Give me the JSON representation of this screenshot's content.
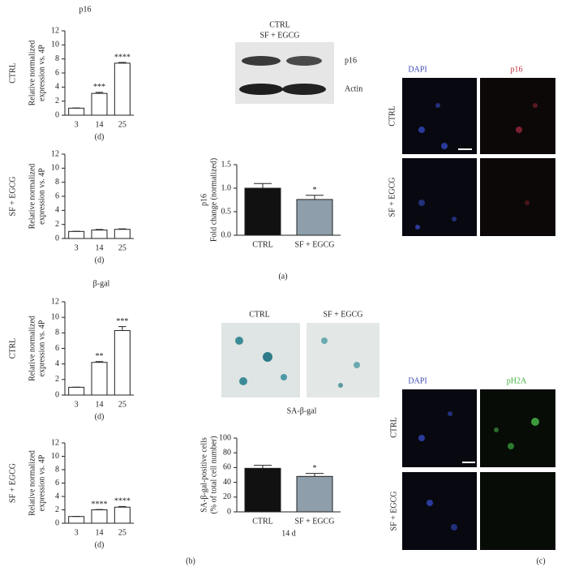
{
  "chart_data": [
    {
      "type": "bar",
      "title": "p16",
      "side_label": "CTRL",
      "ylabel": [
        "Relative normalized",
        "expression vs. 4P"
      ],
      "xlabel": "(d)",
      "categories": [
        "3",
        "14",
        "25"
      ],
      "values": [
        1,
        3.1,
        7.4
      ],
      "errors": [
        0.02,
        0.15,
        0.1
      ],
      "annotations": [
        null,
        "***",
        "****"
      ],
      "color": "#ffffff",
      "ylim": [
        0,
        12
      ],
      "yticks": [
        0,
        2,
        4,
        6,
        8,
        10,
        12
      ]
    },
    {
      "type": "bar",
      "side_label": "SF + EGCG",
      "ylabel": [
        "Relative normalized",
        "expression vs. 4P"
      ],
      "xlabel": "(d)",
      "categories": [
        "3",
        "14",
        "25"
      ],
      "values": [
        1,
        1.2,
        1.3
      ],
      "errors": [
        0.02,
        0.08,
        0.07
      ],
      "color": "#ffffff",
      "ylim": [
        0,
        12
      ],
      "yticks": [
        0,
        2,
        4,
        6,
        8,
        10,
        12
      ]
    },
    {
      "type": "bar",
      "title": "p16",
      "ylabel": [
        "Fold change (normalized)"
      ],
      "categories": [
        "CTRL",
        "SF + EGCG"
      ],
      "values": [
        1.0,
        0.76
      ],
      "errors": [
        0.1,
        0.09
      ],
      "annotations": [
        null,
        "*"
      ],
      "colors": [
        "#111111",
        "#8e9eab"
      ],
      "ylim": [
        0,
        1.5
      ],
      "yticks": [
        {
          "value": 0,
          "label": "0.0"
        },
        0.5,
        {
          "value": 1,
          "label": "1.0"
        },
        1.5
      ]
    },
    {
      "type": "bar",
      "title": "β-gal",
      "side_label": "CTRL",
      "ylabel": [
        "Relative normalized",
        "expression vs. 4P"
      ],
      "xlabel": "(d)",
      "categories": [
        "3",
        "14",
        "25"
      ],
      "values": [
        1,
        4.2,
        8.3
      ],
      "errors": [
        0.02,
        0.1,
        0.5
      ],
      "annotations": [
        null,
        "**",
        "***"
      ],
      "color": "#ffffff",
      "ylim": [
        0,
        12
      ],
      "yticks": [
        0,
        2,
        4,
        6,
        8,
        10,
        12
      ]
    },
    {
      "type": "bar",
      "side_label": "SF + EGCG",
      "ylabel": [
        "Relative normalized",
        "expression vs. 4P"
      ],
      "xlabel": "(d)",
      "categories": [
        "3",
        "14",
        "25"
      ],
      "values": [
        1,
        2.0,
        2.4
      ],
      "errors": [
        0.02,
        0.05,
        0.1
      ],
      "annotations": [
        null,
        "****",
        "****"
      ],
      "color": "#ffffff",
      "ylim": [
        0,
        12
      ],
      "yticks": [
        0,
        2,
        4,
        6,
        8,
        10,
        12
      ]
    },
    {
      "type": "bar",
      "ylabel": [
        "SA-β-gal-positive cells",
        "(% of total cell number)"
      ],
      "xlabel": "14 d",
      "categories": [
        "CTRL",
        "SF + EGCG"
      ],
      "values": [
        59,
        48
      ],
      "errors": [
        4,
        4
      ],
      "annotations": [
        null,
        "*"
      ],
      "colors": [
        "#111111",
        "#8e9eab"
      ],
      "ylim": [
        0,
        100
      ],
      "yticks": [
        0,
        20,
        40,
        60,
        80,
        100
      ]
    }
  ],
  "figure": {
    "panel_labels": [
      "(a)",
      "(b)",
      "(c)"
    ],
    "blot": {
      "lanes": [
        "CTRL",
        "SF + EGCG"
      ],
      "bands": [
        "p16",
        "Actin"
      ]
    },
    "micro_a": {
      "columns": [
        "DAPI",
        "p16"
      ],
      "rows": [
        "CTRL",
        "SF + EGCG"
      ]
    },
    "sa_gal": {
      "columns": [
        "CTRL",
        "SF + EGCG"
      ],
      "caption": "SA-β-gal"
    },
    "micro_c": {
      "columns": [
        "DAPI",
        "pH2A"
      ],
      "rows": [
        "CTRL",
        "SF + EGCG"
      ]
    }
  }
}
